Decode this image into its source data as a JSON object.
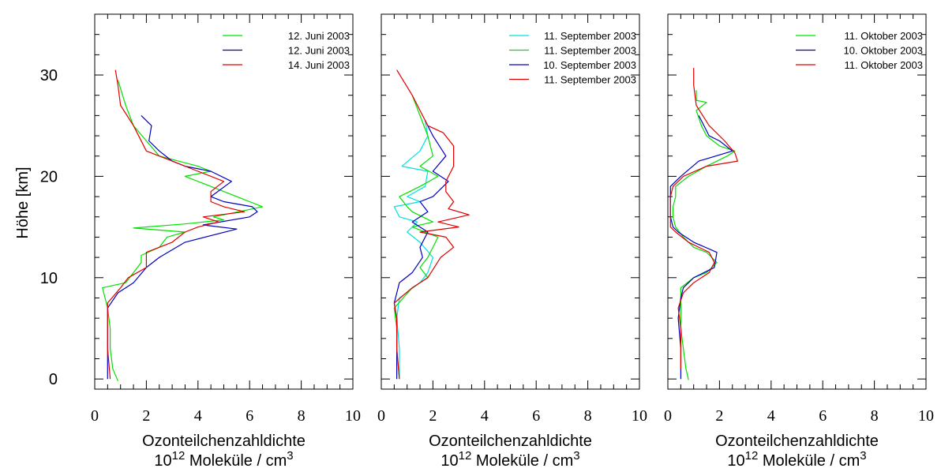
{
  "ylabel": "Höhe [km]",
  "x_title_line1": "Ozonteilchenzahldichte",
  "x_unit_prefix": "10",
  "x_unit_exp": "12",
  "x_unit_rest": " Moleküle / cm",
  "x_unit_cube": "3",
  "chart_data": [
    {
      "type": "line",
      "xlabel": "Ozonteilchenzahldichte 10^12 Moleküle / cm^3",
      "ylabel": "Höhe [km]",
      "xlim": [
        0,
        10
      ],
      "ylim": [
        -1,
        36
      ],
      "xticks": [
        "0",
        "2",
        "4",
        "6",
        "8",
        "10"
      ],
      "yticks": [
        "0",
        "10",
        "20",
        "30"
      ],
      "legend_position": "top-right",
      "series": [
        {
          "name": "12. Juni 2003",
          "color": "#00e000",
          "points": [
            [
              0.9,
              -0.2
            ],
            [
              0.7,
              1
            ],
            [
              0.6,
              3
            ],
            [
              0.6,
              5
            ],
            [
              0.5,
              7
            ],
            [
              0.3,
              9
            ],
            [
              1.2,
              9.5
            ],
            [
              1.5,
              10.5
            ],
            [
              1.8,
              11.5
            ],
            [
              1.8,
              12.2
            ],
            [
              2.5,
              13
            ],
            [
              2.8,
              14
            ],
            [
              3.5,
              14.5
            ],
            [
              1.5,
              14.9
            ],
            [
              3.5,
              15.3
            ],
            [
              5,
              15.7
            ],
            [
              4.6,
              16
            ],
            [
              6.5,
              17
            ],
            [
              6,
              17.5
            ],
            [
              5.5,
              18
            ],
            [
              4.5,
              19
            ],
            [
              3.5,
              20
            ],
            [
              4.5,
              20.5
            ],
            [
              4,
              21
            ],
            [
              2.5,
              22
            ],
            [
              2,
              23.5
            ],
            [
              1.5,
              25
            ],
            [
              1.2,
              27
            ],
            [
              0.9,
              29.5
            ]
          ]
        },
        {
          "name": "12. Juni 2003",
          "color": "#0000c0",
          "points": [
            [
              0.5,
              0
            ],
            [
              0.5,
              2
            ],
            [
              0.5,
              5
            ],
            [
              0.5,
              7
            ],
            [
              0.9,
              8.5
            ],
            [
              1.5,
              9.5
            ],
            [
              2,
              11
            ],
            [
              2.5,
              12
            ],
            [
              3.5,
              13.5
            ],
            [
              5.5,
              14.8
            ],
            [
              4.2,
              15.2
            ],
            [
              6,
              16
            ],
            [
              6.3,
              16.5
            ],
            [
              6.1,
              17
            ],
            [
              5,
              17.5
            ],
            [
              4.5,
              18
            ],
            [
              5.3,
              19.5
            ],
            [
              4.5,
              20.5
            ],
            [
              3.5,
              21
            ],
            [
              3,
              21.5
            ],
            [
              2.5,
              22.5
            ],
            [
              2.1,
              23.5
            ],
            [
              2.2,
              25
            ],
            [
              1.8,
              26
            ]
          ]
        },
        {
          "name": "14. Juni 2003",
          "color": "#e00000",
          "points": [
            [
              0.6,
              0
            ],
            [
              0.5,
              3
            ],
            [
              0.5,
              6
            ],
            [
              0.5,
              7.5
            ],
            [
              1,
              9
            ],
            [
              1.3,
              10
            ],
            [
              2,
              11
            ],
            [
              2,
              12.5
            ],
            [
              3,
              13.5
            ],
            [
              3.5,
              14.5
            ],
            [
              4,
              15
            ],
            [
              4.8,
              15.5
            ],
            [
              4.2,
              16
            ],
            [
              5.8,
              16.5
            ],
            [
              5,
              17
            ],
            [
              4.5,
              17.5
            ],
            [
              4.5,
              18.5
            ],
            [
              5,
              19.5
            ],
            [
              4,
              20.5
            ],
            [
              3,
              21.5
            ],
            [
              2,
              22.5
            ],
            [
              1.5,
              25
            ],
            [
              1,
              27
            ],
            [
              0.9,
              29
            ],
            [
              0.8,
              30.5
            ]
          ]
        }
      ]
    },
    {
      "type": "line",
      "xlabel": "Ozonteilchenzahldichte 10^12 Moleküle / cm^3",
      "ylabel": "",
      "xlim": [
        0,
        10
      ],
      "ylim": [
        -1,
        36
      ],
      "xticks": [
        "0",
        "2",
        "4",
        "6",
        "8",
        "10"
      ],
      "legend_position": "top-right",
      "series": [
        {
          "name": "11. September 2003",
          "color": "#00e0e0",
          "points": [
            [
              0.7,
              0
            ],
            [
              0.7,
              3
            ],
            [
              0.6,
              6
            ],
            [
              0.7,
              8
            ],
            [
              1.5,
              9.5
            ],
            [
              1.8,
              10.5
            ],
            [
              2,
              12
            ],
            [
              1.5,
              13.5
            ],
            [
              1,
              14.5
            ],
            [
              1.4,
              15.5
            ],
            [
              0.7,
              16
            ],
            [
              0.5,
              17
            ],
            [
              1.5,
              17.5
            ],
            [
              1,
              18
            ],
            [
              1.7,
              19
            ],
            [
              1.8,
              20.5
            ],
            [
              0.8,
              21
            ],
            [
              1.5,
              22.5
            ],
            [
              1.8,
              24
            ],
            [
              1.7,
              25.5
            ]
          ]
        },
        {
          "name": "11. September 2003",
          "color": "#00e000",
          "points": [
            [
              0.7,
              0
            ],
            [
              0.6,
              3
            ],
            [
              0.6,
              5
            ],
            [
              0.5,
              7
            ],
            [
              1.2,
              9
            ],
            [
              1.8,
              10
            ],
            [
              1.5,
              11
            ],
            [
              1.8,
              12
            ],
            [
              2.2,
              14
            ],
            [
              1.2,
              15
            ],
            [
              2,
              15.5
            ],
            [
              1.2,
              16.5
            ],
            [
              1,
              17
            ],
            [
              0.7,
              18
            ],
            [
              1.5,
              19
            ],
            [
              2.2,
              20
            ],
            [
              1.5,
              21
            ],
            [
              2,
              22
            ],
            [
              1.8,
              24
            ],
            [
              1.5,
              26
            ],
            [
              1.2,
              28
            ]
          ]
        },
        {
          "name": "10. September 2003",
          "color": "#0000c0",
          "points": [
            [
              0.6,
              0
            ],
            [
              0.6,
              3
            ],
            [
              0.6,
              6
            ],
            [
              0.5,
              7.5
            ],
            [
              0.7,
              9.5
            ],
            [
              1.2,
              10.5
            ],
            [
              1.6,
              12
            ],
            [
              1.5,
              13
            ],
            [
              1.8,
              14.5
            ],
            [
              1.2,
              15.5
            ],
            [
              1.8,
              16.5
            ],
            [
              1.5,
              17.5
            ],
            [
              2,
              18
            ],
            [
              2.6,
              19.5
            ],
            [
              2,
              20.5
            ],
            [
              2.5,
              22
            ],
            [
              2,
              24
            ],
            [
              1.7,
              25.5
            ]
          ]
        },
        {
          "name": "11. September 2003",
          "color": "#e00000",
          "points": [
            [
              0.7,
              0
            ],
            [
              0.6,
              3
            ],
            [
              0.6,
              6
            ],
            [
              0.5,
              7.5
            ],
            [
              1.2,
              9
            ],
            [
              1.8,
              10
            ],
            [
              2.3,
              12
            ],
            [
              2.8,
              13
            ],
            [
              2.5,
              14
            ],
            [
              1.5,
              14.5
            ],
            [
              3,
              15
            ],
            [
              2.2,
              15.5
            ],
            [
              3.4,
              16.2
            ],
            [
              2.6,
              16.8
            ],
            [
              2.8,
              17.5
            ],
            [
              2.5,
              18.5
            ],
            [
              2.5,
              19.5
            ],
            [
              2.8,
              21
            ],
            [
              2.8,
              23
            ],
            [
              2.4,
              24.3
            ],
            [
              1.8,
              25
            ],
            [
              1.2,
              28
            ],
            [
              0.6,
              30.5
            ]
          ]
        }
      ]
    },
    {
      "type": "line",
      "xlabel": "Ozonteilchenzahldichte 10^12 Moleküle / cm^3",
      "ylabel": "",
      "xlim": [
        0,
        10
      ],
      "ylim": [
        -1,
        36
      ],
      "xticks": [
        "0",
        "2",
        "4",
        "6",
        "8",
        "10"
      ],
      "legend_position": "top-right",
      "series": [
        {
          "name": "11. Oktober 2003",
          "color": "#00e000",
          "points": [
            [
              0.8,
              -0.1
            ],
            [
              0.7,
              1
            ],
            [
              0.6,
              3
            ],
            [
              0.5,
              5
            ],
            [
              0.5,
              7
            ],
            [
              0.5,
              9
            ],
            [
              1,
              10
            ],
            [
              1.5,
              10.5
            ],
            [
              1.9,
              11.5
            ],
            [
              1.5,
              12.5
            ],
            [
              1,
              13
            ],
            [
              0.6,
              14
            ],
            [
              0.3,
              15
            ],
            [
              0.2,
              16
            ],
            [
              0.2,
              17
            ],
            [
              0.3,
              18
            ],
            [
              0.3,
              19
            ],
            [
              0.8,
              20
            ],
            [
              1.5,
              21
            ],
            [
              2.3,
              22
            ],
            [
              2.6,
              22.5
            ],
            [
              2,
              23
            ],
            [
              1.5,
              24
            ],
            [
              1.3,
              25
            ],
            [
              1.1,
              26.5
            ],
            [
              1.5,
              27.3
            ],
            [
              1.1,
              27.5
            ],
            [
              1.1,
              28.5
            ]
          ]
        },
        {
          "name": "10. Oktober 2003",
          "color": "#0000c0",
          "points": [
            [
              0.5,
              0
            ],
            [
              0.5,
              3
            ],
            [
              0.4,
              6
            ],
            [
              0.5,
              8
            ],
            [
              0.6,
              9
            ],
            [
              1,
              10
            ],
            [
              1.8,
              11
            ],
            [
              1.9,
              12.5
            ],
            [
              1,
              13.5
            ],
            [
              0.4,
              14.5
            ],
            [
              0.2,
              15
            ],
            [
              0.1,
              16
            ],
            [
              0.1,
              17
            ],
            [
              0.1,
              18
            ],
            [
              0.1,
              19
            ],
            [
              0.5,
              20
            ],
            [
              1.2,
              21.5
            ],
            [
              2.5,
              22.5
            ],
            [
              2,
              23.5
            ],
            [
              1.6,
              24
            ],
            [
              1.2,
              26
            ]
          ]
        },
        {
          "name": "11. Oktober 2003",
          "color": "#e00000",
          "points": [
            [
              0.5,
              1
            ],
            [
              0.5,
              3
            ],
            [
              0.5,
              5
            ],
            [
              0.4,
              7
            ],
            [
              0.6,
              8.5
            ],
            [
              1,
              9.5
            ],
            [
              1.6,
              10.5
            ],
            [
              1.8,
              11.5
            ],
            [
              1.6,
              12.5
            ],
            [
              0.8,
              13.5
            ],
            [
              0.3,
              14.5
            ],
            [
              0.1,
              15
            ],
            [
              0.1,
              16
            ],
            [
              0.1,
              17
            ],
            [
              0.1,
              18
            ],
            [
              0.2,
              19
            ],
            [
              0.6,
              20
            ],
            [
              1.5,
              21
            ],
            [
              2.7,
              21.5
            ],
            [
              2.6,
              22.3
            ],
            [
              2.2,
              23.5
            ],
            [
              1.6,
              25
            ],
            [
              1.1,
              27
            ],
            [
              1,
              29
            ],
            [
              1,
              30.7
            ]
          ]
        }
      ]
    }
  ]
}
